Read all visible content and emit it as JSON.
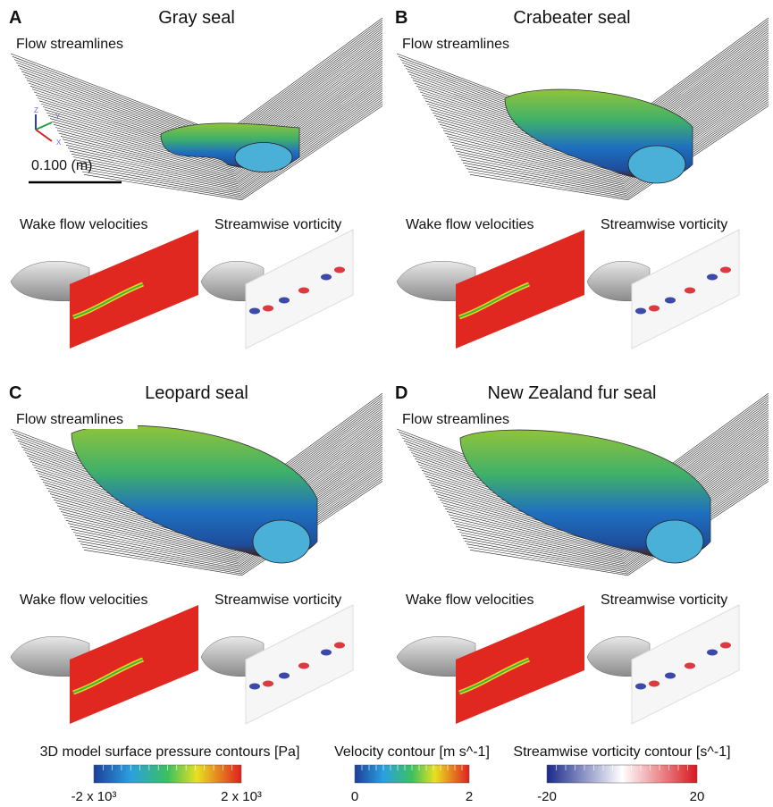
{
  "panels": [
    {
      "letter": "A",
      "title": "Gray seal",
      "streamlines_label": "Flow streamlines",
      "wake_label": "Wake flow velocities",
      "vorticity_label": "Streamwise vorticity"
    },
    {
      "letter": "B",
      "title": "Crabeater seal",
      "streamlines_label": "Flow streamlines",
      "wake_label": "Wake flow velocities",
      "vorticity_label": "Streamwise vorticity"
    },
    {
      "letter": "C",
      "title": "Leopard seal",
      "streamlines_label": "Flow streamlines",
      "wake_label": "Wake flow velocities",
      "vorticity_label": "Streamwise vorticity"
    },
    {
      "letter": "D",
      "title": "New Zealand fur seal",
      "streamlines_label": "Flow streamlines",
      "wake_label": "Wake flow velocities",
      "vorticity_label": "Streamwise vorticity"
    }
  ],
  "scale_bar": "0.100 (m)",
  "axis_labels": [
    "Z",
    "Y",
    "X"
  ],
  "colorbars": [
    {
      "title": "3D model surface pressure contours [Pa]",
      "ticks": [
        "-2 x 10³",
        "2 x 10³"
      ]
    },
    {
      "title": "Velocity contour [m s^-1]",
      "ticks": [
        "0",
        "2"
      ]
    },
    {
      "title": "Streamwise vorticity contour [s^-1]",
      "ticks": [
        "-20",
        "20"
      ]
    }
  ]
}
